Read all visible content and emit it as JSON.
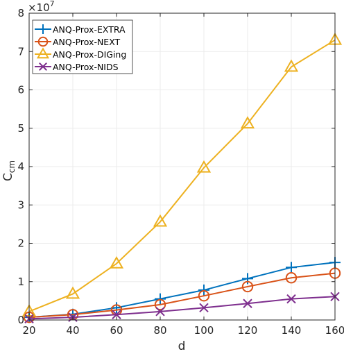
{
  "chart_data": {
    "type": "line",
    "title": "",
    "xlabel": "d",
    "ylabel": "C",
    "ylabel_sub": "cm",
    "y_multiplier": "×10",
    "y_multiplier_exp": "7",
    "x": [
      20,
      40,
      60,
      80,
      100,
      120,
      140,
      160
    ],
    "xlim": [
      20,
      160
    ],
    "ylim": [
      0,
      8
    ],
    "xticks": [
      20,
      40,
      60,
      80,
      100,
      120,
      140,
      160
    ],
    "yticks": [
      0,
      1,
      2,
      3,
      4,
      5,
      6,
      7,
      8
    ],
    "grid": true,
    "legend_position": "top-left",
    "series": [
      {
        "name": "ANQ-Prox-EXTRA",
        "color": "#0072BD",
        "marker": "plus",
        "values": [
          0.07,
          0.15,
          0.32,
          0.55,
          0.78,
          1.08,
          1.37,
          1.5
        ]
      },
      {
        "name": "ANQ-Prox-NEXT",
        "color": "#D95319",
        "marker": "circle",
        "values": [
          0.07,
          0.14,
          0.26,
          0.4,
          0.63,
          0.87,
          1.1,
          1.22
        ]
      },
      {
        "name": "ANQ-Prox-DIGing",
        "color": "#EDB120",
        "marker": "triangle",
        "values": [
          0.22,
          0.68,
          1.47,
          2.56,
          3.97,
          5.12,
          6.6,
          7.3
        ]
      },
      {
        "name": "ANQ-Prox-NIDS",
        "color": "#7E2F8E",
        "marker": "x",
        "values": [
          0.03,
          0.07,
          0.14,
          0.22,
          0.32,
          0.43,
          0.55,
          0.61
        ]
      }
    ]
  }
}
